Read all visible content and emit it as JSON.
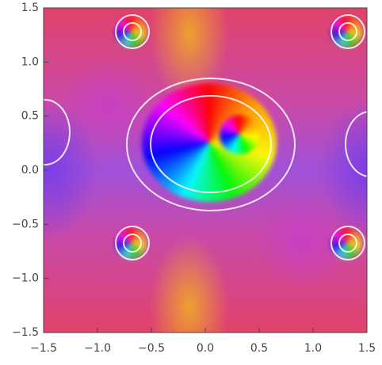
{
  "chart_data": {
    "type": "complex-plot",
    "xlim": [
      -1.5,
      1.5
    ],
    "ylim": [
      -1.5,
      1.5
    ],
    "xticks": [
      {
        "value": -1.5,
        "label": "−1.5"
      },
      {
        "value": -1,
        "label": "−1.0"
      },
      {
        "value": -0.5,
        "label": "−0.5"
      },
      {
        "value": 0,
        "label": "0.0"
      },
      {
        "value": 0.5,
        "label": "0.5"
      },
      {
        "value": 1,
        "label": "1.0"
      },
      {
        "value": 1.5,
        "label": "1.5"
      }
    ],
    "yticks": [
      {
        "value": -1.5,
        "label": "−1.5"
      },
      {
        "value": -1,
        "label": "−1.0"
      },
      {
        "value": -0.5,
        "label": "−0.5"
      },
      {
        "value": 0,
        "label": "0.0"
      },
      {
        "value": 0.5,
        "label": "0.5"
      },
      {
        "value": 1,
        "label": "1.0"
      },
      {
        "value": 1.5,
        "label": "1.5"
      }
    ]
  }
}
